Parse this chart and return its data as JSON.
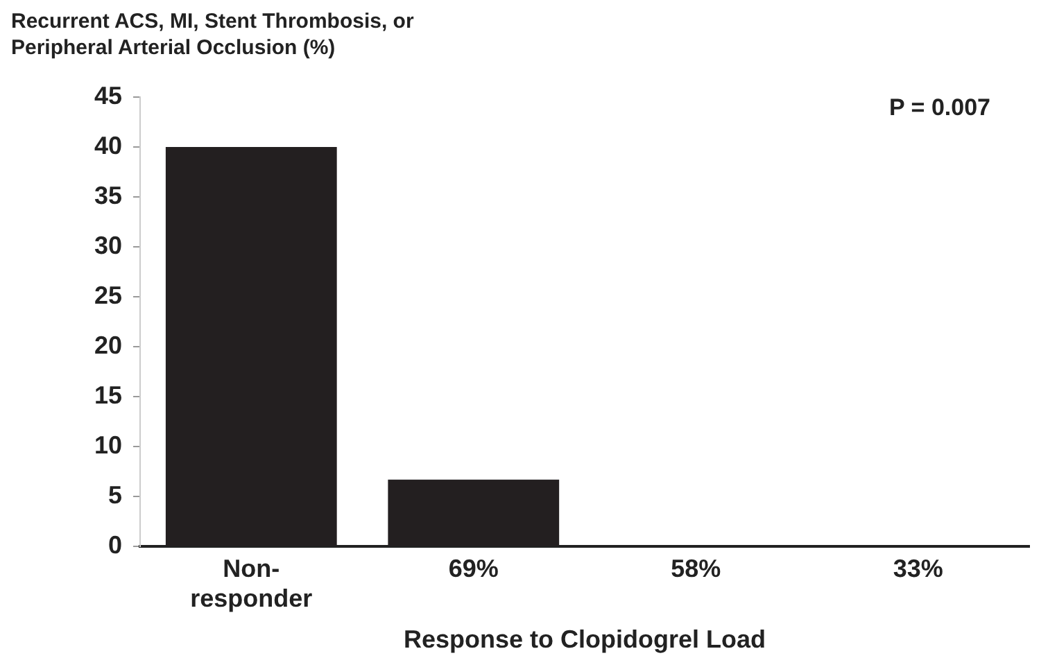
{
  "chart_data": {
    "type": "bar",
    "ylabel": "Recurrent ACS, MI, Stent Thrombosis, or Peripheral Arterial Occlusion (%)",
    "xlabel": "Response to Clopidogrel Load",
    "categories": [
      "Non-responder",
      "69%",
      "58%",
      "33%"
    ],
    "values": [
      40,
      6.7,
      0,
      0
    ],
    "color": "#231f20",
    "ylim": [
      0,
      45
    ],
    "yticks": [
      0,
      5,
      10,
      15,
      20,
      25,
      30,
      35,
      40,
      45
    ],
    "grid": false,
    "annotations": [
      "P = 0.007"
    ]
  }
}
